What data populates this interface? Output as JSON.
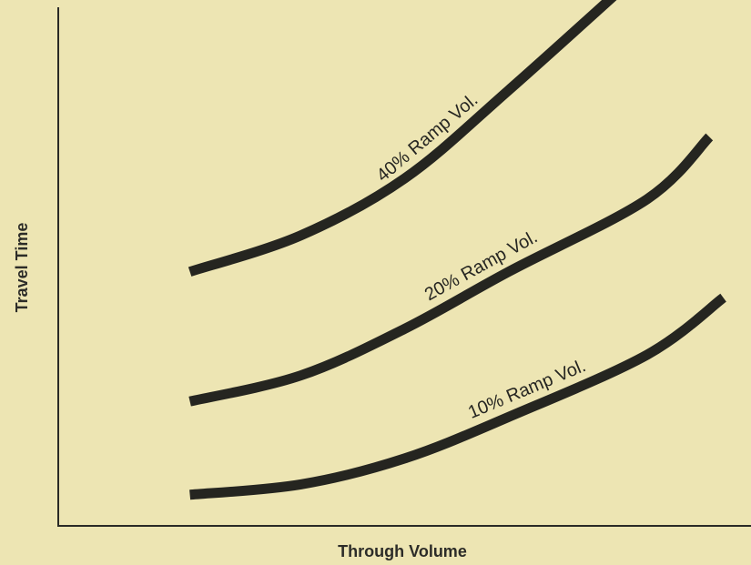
{
  "chart_data": {
    "type": "line",
    "title": "",
    "xlabel": "Through Volume",
    "ylabel": "Travel Time",
    "xlim": [
      0,
      100
    ],
    "ylim": [
      0,
      100
    ],
    "grid": false,
    "legend": "none",
    "tick_labels": {
      "x": [],
      "y": []
    },
    "line_color": "#252520",
    "series": [
      {
        "name": "40% Ramp Vol.",
        "points": [
          [
            19,
            49
          ],
          [
            35,
            56
          ],
          [
            50,
            67
          ],
          [
            65,
            84
          ],
          [
            85,
            108
          ]
        ]
      },
      {
        "name": "20% Ramp Vol.",
        "points": [
          [
            19,
            24
          ],
          [
            35,
            29
          ],
          [
            50,
            38
          ],
          [
            65,
            49
          ],
          [
            85,
            63
          ],
          [
            94,
            75
          ]
        ]
      },
      {
        "name": "10% Ramp Vol.",
        "points": [
          [
            19,
            6
          ],
          [
            35,
            8
          ],
          [
            50,
            13
          ],
          [
            65,
            21
          ],
          [
            85,
            33
          ],
          [
            96,
            44
          ]
        ]
      }
    ]
  },
  "colors": {
    "background": "#ede5b3",
    "ink": "#252520"
  }
}
